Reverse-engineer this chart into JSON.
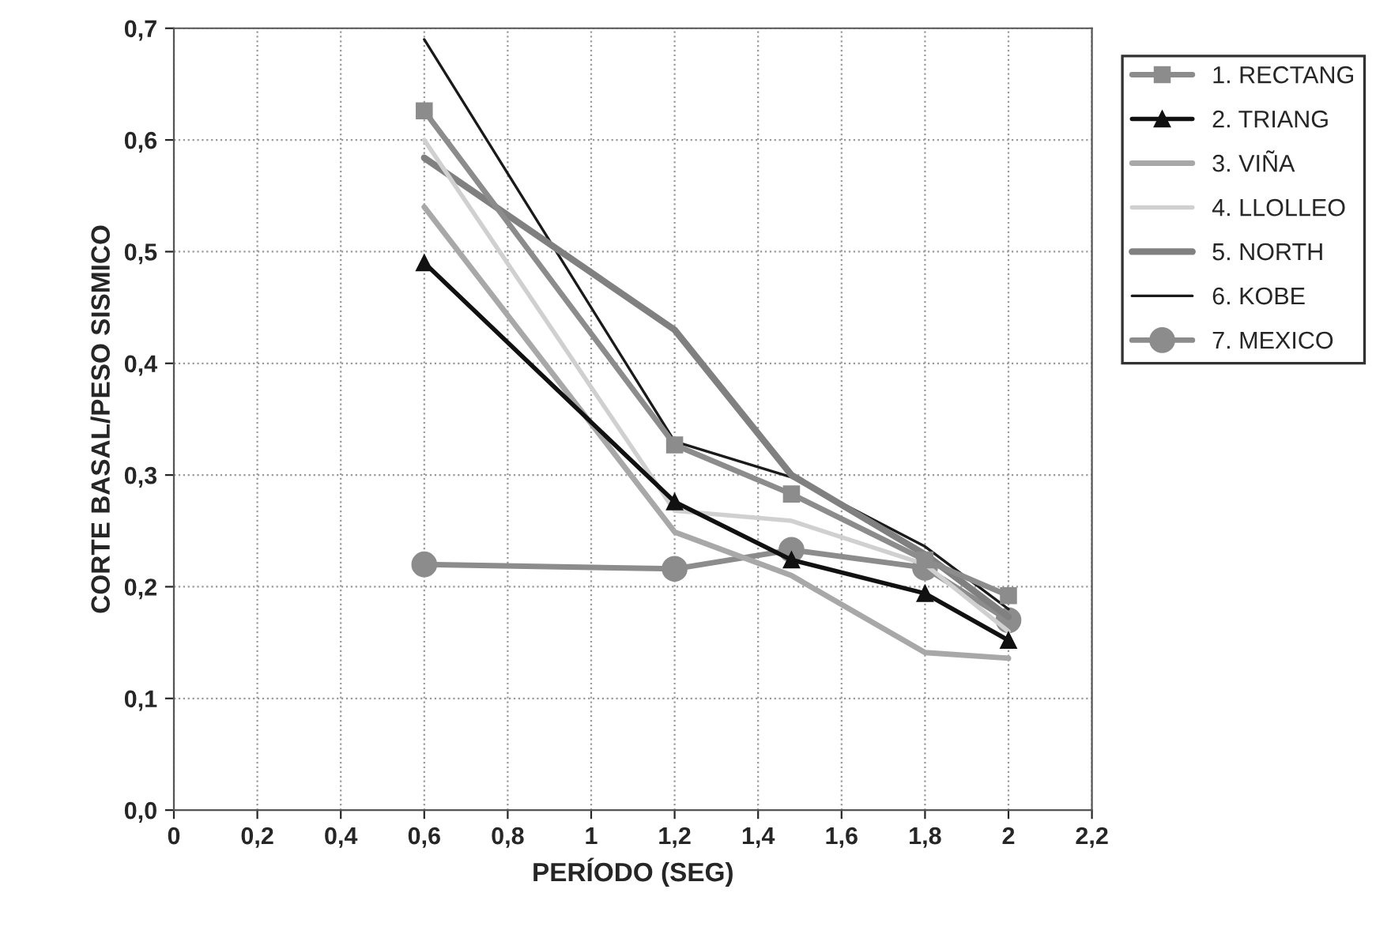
{
  "chart_data": {
    "type": "line",
    "xlabel": "PERÍODO (SEG)",
    "ylabel": "CORTE BASAL/PESO SISMICO",
    "x": [
      0.6,
      1.2,
      1.48,
      1.8,
      2.0
    ],
    "series": [
      {
        "name": "1. RECTANG",
        "color": "#8c8c8c",
        "marker": "square",
        "values": [
          0.626,
          0.327,
          0.283,
          0.224,
          0.192
        ]
      },
      {
        "name": "2. TRIANG",
        "color": "#111111",
        "marker": "triangle",
        "values": [
          0.49,
          0.276,
          0.224,
          0.194,
          0.152
        ]
      },
      {
        "name": "3. VIÑA",
        "color": "#a8a8a8",
        "marker": "none",
        "values": [
          0.54,
          0.249,
          0.21,
          0.141,
          0.136
        ]
      },
      {
        "name": "4. LLOLLEO",
        "color": "#d0d0d0",
        "marker": "none",
        "values": [
          0.6,
          0.268,
          0.259,
          0.22,
          0.16
        ]
      },
      {
        "name": "5. NORTH",
        "color": "#808080",
        "marker": "none",
        "values": [
          0.584,
          0.43,
          0.3,
          0.229,
          0.173
        ]
      },
      {
        "name": "6. KOBE",
        "color": "#1a1a1a",
        "marker": "none",
        "values": [
          0.69,
          0.33,
          0.298,
          0.236,
          0.18
        ]
      },
      {
        "name": "7. MEXICO",
        "color": "#8c8c8c",
        "marker": "circle",
        "values": [
          0.22,
          0.216,
          0.233,
          0.217,
          0.17
        ]
      }
    ],
    "xlim": [
      0,
      2.2
    ],
    "xticks": [
      0,
      {
        "value": 0.2,
        "label": "0,2"
      },
      {
        "value": 0.4,
        "label": "0,4"
      },
      {
        "value": 0.6,
        "label": "0,6"
      },
      {
        "value": 0.8,
        "label": "0,8"
      },
      1,
      {
        "value": 1.2,
        "label": "1,2"
      },
      {
        "value": 1.4,
        "label": "1,4"
      },
      {
        "value": 1.6,
        "label": "1,6"
      },
      {
        "value": 1.8,
        "label": "1,8"
      },
      2,
      {
        "value": 2.2,
        "label": "2,2"
      }
    ],
    "ylim": [
      0,
      0.7
    ],
    "yticks": [
      {
        "value": 0,
        "label": "0,0"
      },
      {
        "value": 0.1,
        "label": "0,1"
      },
      {
        "value": 0.2,
        "label": "0,2"
      },
      {
        "value": 0.3,
        "label": "0,3"
      },
      {
        "value": 0.4,
        "label": "0,4"
      },
      {
        "value": 0.5,
        "label": "0,5"
      },
      {
        "value": 0.6,
        "label": "0,6"
      },
      {
        "value": 0.7,
        "label": "0,7"
      }
    ],
    "grid": true,
    "legend": "right",
    "line_style": "solid"
  }
}
